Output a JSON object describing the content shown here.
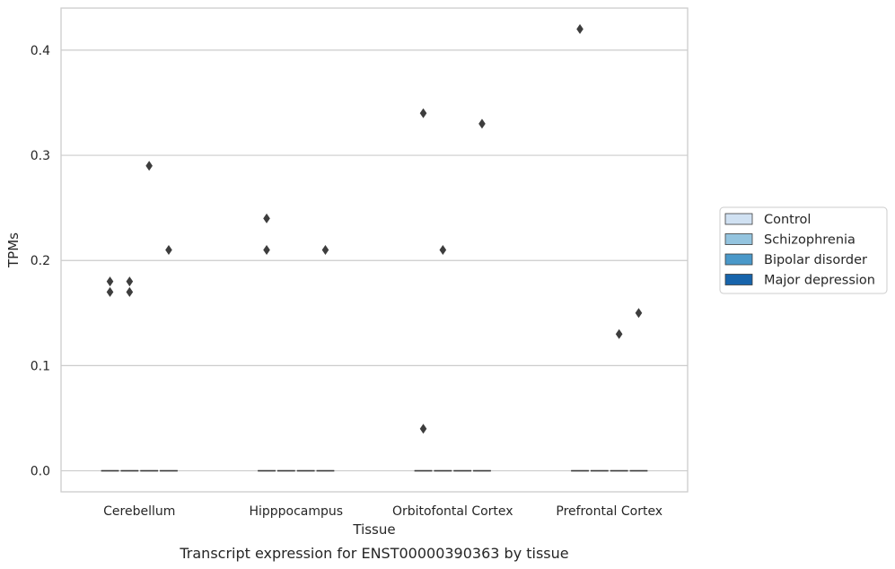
{
  "chart_data": {
    "type": "box",
    "title": "",
    "caption": "Transcript expression for ENST00000390363 by tissue",
    "xlabel": "Tissue",
    "ylabel": "TPMs",
    "ylim": [
      -0.02,
      0.44
    ],
    "yticks": [
      "0.0",
      "0.1",
      "0.2",
      "0.3",
      "0.4"
    ],
    "ytick_values": [
      0.0,
      0.1,
      0.2,
      0.3,
      0.4
    ],
    "grid": "horizontal",
    "legend_position": "right",
    "categories": [
      "Cerebellum",
      "Hipppocampus",
      "Orbitofontal Cortex",
      "Prefrontal Cortex"
    ],
    "series": [
      {
        "name": "Control",
        "color": "#d0e1f2",
        "medians": [
          0.0,
          0.0,
          0.0,
          0.0
        ],
        "outliers": [
          [
            0.17,
            0.18
          ],
          [
            0.21,
            0.24
          ],
          [
            0.04,
            0.34
          ],
          [
            0.42
          ]
        ]
      },
      {
        "name": "Schizophrenia",
        "color": "#94c4df",
        "medians": [
          0.0,
          0.0,
          0.0,
          0.0
        ],
        "outliers": [
          [
            0.17,
            0.18
          ],
          [],
          [
            0.21
          ],
          []
        ]
      },
      {
        "name": "Bipolar disorder",
        "color": "#4a98c9",
        "medians": [
          0.0,
          0.0,
          0.0,
          0.0
        ],
        "outliers": [
          [
            0.29
          ],
          [],
          [],
          [
            0.13
          ]
        ]
      },
      {
        "name": "Major depression",
        "color": "#1764ab",
        "medians": [
          0.0,
          0.0,
          0.0,
          0.0
        ],
        "outliers": [
          [
            0.21
          ],
          [
            0.21
          ],
          [
            0.33
          ],
          [
            0.15
          ]
        ]
      }
    ]
  }
}
